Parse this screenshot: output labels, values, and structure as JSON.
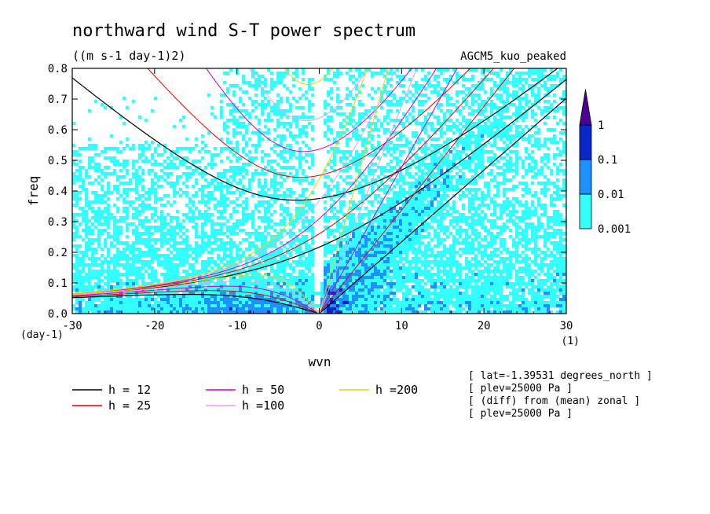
{
  "chart_data": {
    "type": "heatmap",
    "title": "northward wind S-T power spectrum",
    "units": "((m s-1 day-1)2)",
    "model": "AGCM5_kuo_peaked",
    "xlabel": "wvn",
    "x_unit": "(1)",
    "ylabel": "freq",
    "y_unit": "(day-1)",
    "xlim": [
      -30,
      30
    ],
    "ylim": [
      0,
      0.8
    ],
    "x_ticks": [
      -30,
      -20,
      -10,
      0,
      10,
      20,
      30
    ],
    "y_ticks": [
      0,
      0.1,
      0.2,
      0.3,
      0.4,
      0.5,
      0.6,
      0.7,
      0.8
    ],
    "colorbar": {
      "levels": [
        0.001,
        0.01,
        0.1,
        1
      ],
      "labels": [
        "0.001",
        "0.01",
        "0.1",
        "1"
      ],
      "colors": [
        "#33ffff",
        "#1e90ff",
        "#0a28c8",
        "#4b0096"
      ]
    },
    "dispersion_curves": [
      {
        "label": "h = 12",
        "h": 12,
        "color": "#000000"
      },
      {
        "label": "h = 25",
        "h": 25,
        "color": "#e60000"
      },
      {
        "label": "h = 50",
        "h": 50,
        "color": "#d200c8"
      },
      {
        "label": "h =100",
        "h": 100,
        "color": "#e6a0e6"
      },
      {
        "label": "h =200",
        "h": 200,
        "color": "#f0d200"
      }
    ],
    "annotations": [
      "[ lat=-1.39531 degrees_north ]",
      "[ plev=25000 Pa ]",
      "[ (diff) from (mean) zonal ]",
      "[ plev=25000 Pa ]"
    ]
  }
}
